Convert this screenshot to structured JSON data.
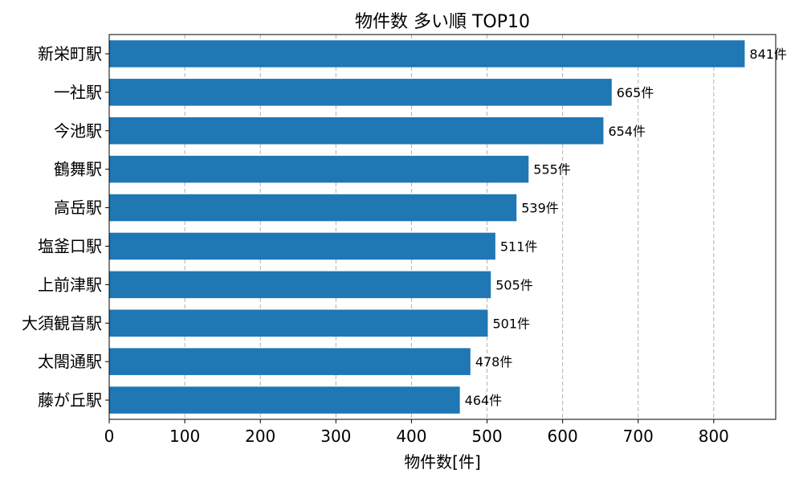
{
  "chart_data": {
    "type": "bar",
    "orientation": "horizontal",
    "title": "物件数 多い順 TOP10",
    "xlabel": "物件数[件]",
    "ylabel": "",
    "categories": [
      "新栄町駅",
      "一社駅",
      "今池駅",
      "鶴舞駅",
      "高岳駅",
      "塩釜口駅",
      "上前津駅",
      "大須観音駅",
      "太閤通駅",
      "藤が丘駅"
    ],
    "values": [
      841,
      665,
      654,
      555,
      539,
      511,
      505,
      501,
      478,
      464
    ],
    "value_suffix": "件",
    "xlim": [
      0,
      882
    ],
    "xticks": [
      0,
      100,
      200,
      300,
      400,
      500,
      600,
      700,
      800
    ],
    "grid": "x-dashed",
    "bar_color": "#1f77b4",
    "grid_color": "#b0b0b0"
  }
}
